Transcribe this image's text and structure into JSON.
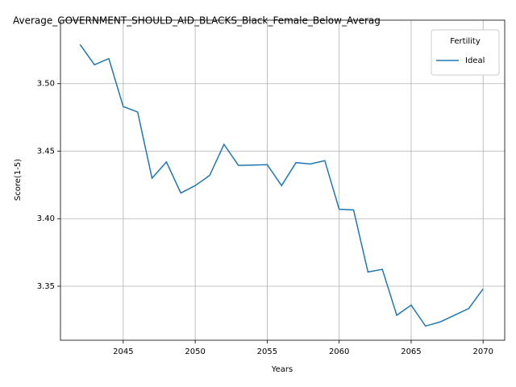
{
  "chart_data": {
    "type": "line",
    "title": "Average_GOVERNMENT_SHOULD_AID_BLACKS_Black_Female_Below_Averag",
    "xlabel": "Years",
    "ylabel": "Score(1-5)",
    "x": [
      2042,
      2043,
      2044,
      2045,
      2046,
      2047,
      2048,
      2049,
      2050,
      2051,
      2052,
      2053,
      2054,
      2055,
      2056,
      2057,
      2058,
      2059,
      2060,
      2061,
      2062,
      2063,
      2064,
      2065,
      2066,
      2067,
      2068,
      2069,
      2070
    ],
    "series": [
      {
        "name": "Ideal",
        "color": "#1f77b4",
        "values": [
          3.529,
          3.514,
          3.5185,
          3.483,
          3.479,
          3.43,
          3.442,
          3.419,
          3.4245,
          3.432,
          3.455,
          3.4395,
          3.4397,
          3.44,
          3.4245,
          3.4415,
          3.4405,
          3.443,
          3.407,
          3.4065,
          3.3605,
          3.3625,
          3.3285,
          3.336,
          3.3205,
          3.3235,
          3.3285,
          3.3335,
          3.348
        ]
      }
    ],
    "xlim": [
      2040.64,
      2071.5
    ],
    "ylim": [
      3.31,
      3.547
    ],
    "xticks": [
      2045,
      2050,
      2055,
      2060,
      2065,
      2070
    ],
    "yticks": [
      {
        "value": 3.35,
        "label": "3.35"
      },
      {
        "value": 3.4,
        "label": "3.40"
      },
      {
        "value": 3.45,
        "label": "3.45"
      },
      {
        "value": 3.5,
        "label": "3.50"
      }
    ],
    "grid": true,
    "legend_title": "Fertility",
    "legend_position": "upper right"
  }
}
